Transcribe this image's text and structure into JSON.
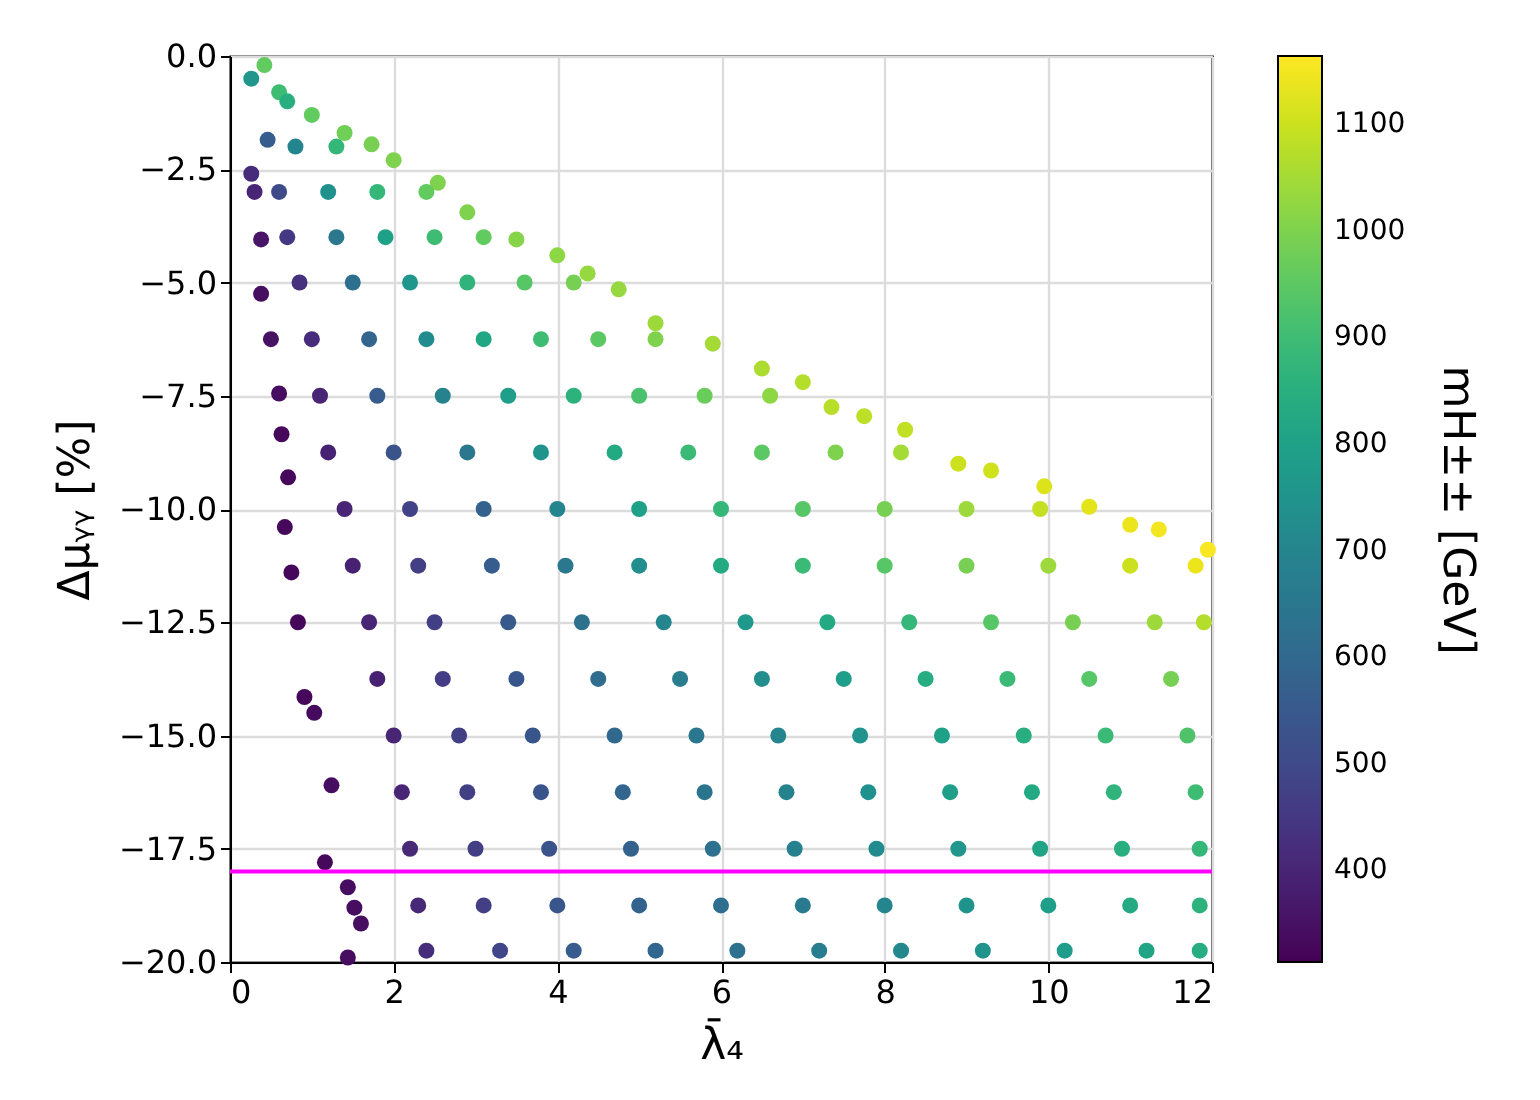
{
  "chart_data": {
    "type": "scatter",
    "xlabel": "λ̄₄",
    "ylabel": "Δμᵧᵧ [%]",
    "clabel": "mH±± [GeV]",
    "marker": "circle",
    "x": [
      0.42,
      0.26,
      0.6,
      1.0,
      1.4,
      1.73,
      2.0,
      2.54,
      2.9,
      3.5,
      4.0,
      4.37,
      4.75,
      5.2,
      5.9,
      6.5,
      7.0,
      7.35,
      7.75,
      8.25,
      8.9,
      9.3,
      9.95,
      10.5,
      11.0,
      11.35,
      11.95,
      0.26,
      0.3,
      0.38,
      0.38,
      0.5,
      0.6,
      0.63,
      0.71,
      0.67,
      0.75,
      0.83,
      0.91,
      1.03,
      1.24,
      1.16,
      1.44,
      1.52,
      1.6,
      1.44,
      0.46,
      0.7,
      0.8,
      1.3,
      0.6,
      1.2,
      1.8,
      2.4,
      0.7,
      1.3,
      1.9,
      2.5,
      3.1,
      0.85,
      1.5,
      2.2,
      2.9,
      3.6,
      4.2,
      1.0,
      1.7,
      2.4,
      3.1,
      3.8,
      4.5,
      5.2,
      1.1,
      1.8,
      2.6,
      3.4,
      4.2,
      5.0,
      5.8,
      6.6,
      1.2,
      2.0,
      2.9,
      3.8,
      4.7,
      5.6,
      6.5,
      7.4,
      8.2,
      1.4,
      2.2,
      3.1,
      4.0,
      5.0,
      6.0,
      7.0,
      8.0,
      9.0,
      9.9,
      1.5,
      2.3,
      3.2,
      4.1,
      5.0,
      6.0,
      7.0,
      8.0,
      9.0,
      10.0,
      11.0,
      11.8,
      1.7,
      2.5,
      3.4,
      4.3,
      5.3,
      6.3,
      7.3,
      8.3,
      9.3,
      10.3,
      11.3,
      11.9,
      1.8,
      2.6,
      3.5,
      4.5,
      5.5,
      6.5,
      7.5,
      8.5,
      9.5,
      10.5,
      11.5,
      2.0,
      2.8,
      3.7,
      4.7,
      5.7,
      6.7,
      7.7,
      8.7,
      9.7,
      10.7,
      11.7,
      2.1,
      2.9,
      3.8,
      4.8,
      5.8,
      6.8,
      7.8,
      8.8,
      9.8,
      10.8,
      11.8,
      2.2,
      3.0,
      3.9,
      4.9,
      5.9,
      6.9,
      7.9,
      8.9,
      9.9,
      10.9,
      11.85,
      2.3,
      3.1,
      4.0,
      5.0,
      6.0,
      7.0,
      8.0,
      9.0,
      10.0,
      11.0,
      11.85,
      2.4,
      3.3,
      4.2,
      5.2,
      6.2,
      7.2,
      8.2,
      9.2,
      10.2,
      11.2,
      11.85
    ],
    "values": [
      -0.2,
      -0.5,
      -0.8,
      -1.3,
      -1.7,
      -1.95,
      -2.3,
      -2.8,
      -3.45,
      -4.05,
      -4.4,
      -4.8,
      -5.15,
      -5.9,
      -6.35,
      -6.9,
      -7.2,
      -7.75,
      -7.95,
      -8.25,
      -9.0,
      -9.15,
      -9.5,
      -9.95,
      -10.35,
      -10.45,
      -10.9,
      -2.6,
      -3.0,
      -4.05,
      -5.25,
      -6.25,
      -7.45,
      -8.35,
      -9.3,
      -10.4,
      -11.4,
      -12.5,
      -14.15,
      -14.5,
      -16.1,
      -17.8,
      -18.35,
      -18.8,
      -19.15,
      -19.9,
      -1.85,
      -1.0,
      -2.0,
      -2.0,
      -3.0,
      -3.0,
      -3.0,
      -3.0,
      -4.0,
      -4.0,
      -4.0,
      -4.0,
      -4.0,
      -5.0,
      -5.0,
      -5.0,
      -5.0,
      -5.0,
      -5.0,
      -6.25,
      -6.25,
      -6.25,
      -6.25,
      -6.25,
      -6.25,
      -6.25,
      -7.5,
      -7.5,
      -7.5,
      -7.5,
      -7.5,
      -7.5,
      -7.5,
      -7.5,
      -8.75,
      -8.75,
      -8.75,
      -8.75,
      -8.75,
      -8.75,
      -8.75,
      -8.75,
      -8.75,
      -10.0,
      -10.0,
      -10.0,
      -10.0,
      -10.0,
      -10.0,
      -10.0,
      -10.0,
      -10.0,
      -10.0,
      -11.25,
      -11.25,
      -11.25,
      -11.25,
      -11.25,
      -11.25,
      -11.25,
      -11.25,
      -11.25,
      -11.25,
      -11.25,
      -11.25,
      -12.5,
      -12.5,
      -12.5,
      -12.5,
      -12.5,
      -12.5,
      -12.5,
      -12.5,
      -12.5,
      -12.5,
      -12.5,
      -12.5,
      -13.75,
      -13.75,
      -13.75,
      -13.75,
      -13.75,
      -13.75,
      -13.75,
      -13.75,
      -13.75,
      -13.75,
      -13.75,
      -15.0,
      -15.0,
      -15.0,
      -15.0,
      -15.0,
      -15.0,
      -15.0,
      -15.0,
      -15.0,
      -15.0,
      -15.0,
      -16.25,
      -16.25,
      -16.25,
      -16.25,
      -16.25,
      -16.25,
      -16.25,
      -16.25,
      -16.25,
      -16.25,
      -16.25,
      -17.5,
      -17.5,
      -17.5,
      -17.5,
      -17.5,
      -17.5,
      -17.5,
      -17.5,
      -17.5,
      -17.5,
      -17.5,
      -18.75,
      -18.75,
      -18.75,
      -18.75,
      -18.75,
      -18.75,
      -18.75,
      -18.75,
      -18.75,
      -18.75,
      -18.75,
      -19.75,
      -19.75,
      -19.75,
      -19.75,
      -19.75,
      -19.75,
      -19.75,
      -19.75,
      -19.75,
      -19.75,
      -19.75
    ],
    "cvalues": [
      960,
      760,
      900,
      960,
      980,
      990,
      1000,
      1000,
      1000,
      1010,
      1020,
      1030,
      1030,
      1040,
      1050,
      1060,
      1070,
      1075,
      1080,
      1085,
      1100,
      1105,
      1120,
      1130,
      1140,
      1150,
      1160,
      420,
      400,
      360,
      340,
      350,
      340,
      330,
      330,
      330,
      330,
      330,
      330,
      335,
      340,
      330,
      340,
      340,
      345,
      340,
      560,
      850,
      700,
      880,
      500,
      740,
      880,
      960,
      450,
      650,
      800,
      900,
      960,
      430,
      620,
      760,
      870,
      940,
      990,
      420,
      590,
      720,
      820,
      900,
      950,
      1000,
      400,
      560,
      690,
      790,
      860,
      920,
      970,
      1020,
      390,
      530,
      650,
      750,
      830,
      890,
      950,
      1000,
      1050,
      400,
      480,
      580,
      700,
      800,
      880,
      940,
      990,
      1040,
      1090,
      390,
      470,
      560,
      650,
      730,
      830,
      890,
      940,
      990,
      1040,
      1100,
      1140,
      400,
      470,
      550,
      630,
      700,
      770,
      830,
      880,
      940,
      990,
      1040,
      1070,
      390,
      460,
      540,
      610,
      670,
      730,
      790,
      840,
      890,
      940,
      990,
      400,
      470,
      540,
      600,
      650,
      700,
      750,
      800,
      850,
      890,
      930,
      400,
      470,
      530,
      590,
      640,
      690,
      740,
      790,
      830,
      870,
      900,
      410,
      470,
      530,
      580,
      630,
      680,
      720,
      760,
      810,
      850,
      880,
      410,
      470,
      540,
      580,
      620,
      660,
      700,
      750,
      790,
      830,
      860,
      420,
      490,
      560,
      590,
      630,
      670,
      710,
      750,
      780,
      810,
      840
    ],
    "xlim": [
      0,
      12
    ],
    "ylim": [
      -20,
      0
    ],
    "xticks": [
      0,
      2,
      4,
      6,
      8,
      10,
      12
    ],
    "yticks": [
      {
        "value": -20,
        "label": "−20.0"
      },
      {
        "value": -17.5,
        "label": "−17.5"
      },
      {
        "value": -15,
        "label": "−15.0"
      },
      {
        "value": -12.5,
        "label": "−12.5"
      },
      {
        "value": -10,
        "label": "−10.0"
      },
      {
        "value": -7.5,
        "label": "−7.5"
      },
      {
        "value": -5,
        "label": "−5.0"
      },
      {
        "value": -2.5,
        "label": "−2.5"
      },
      {
        "value": 0,
        "label": "0.0"
      }
    ],
    "clim": [
      314,
      1164
    ],
    "cticks": [
      400,
      500,
      600,
      700,
      800,
      900,
      1000,
      1100
    ],
    "grid": true,
    "ref_lines": [
      {
        "axis": "y",
        "value": -18,
        "color": "#ff00ff"
      }
    ]
  }
}
